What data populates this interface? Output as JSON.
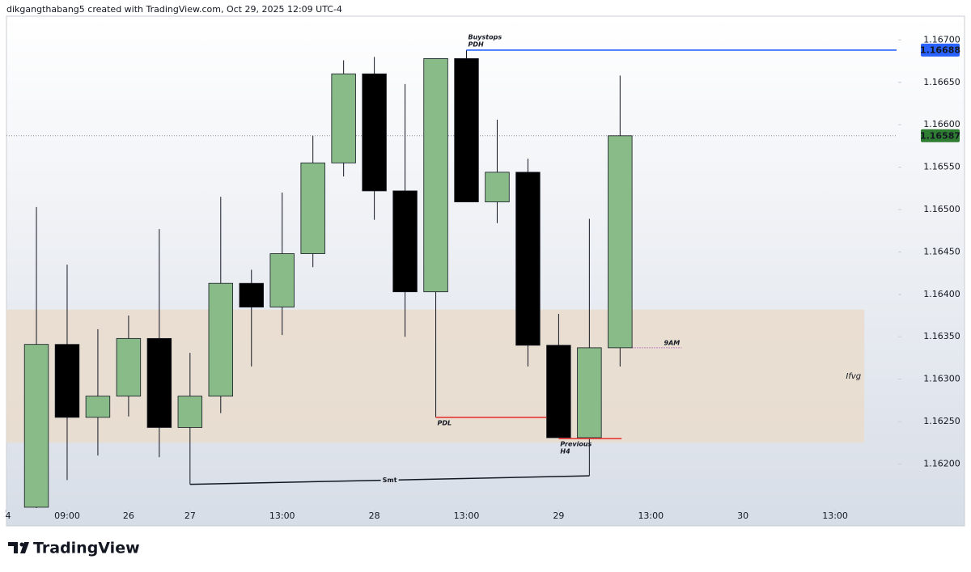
{
  "header": {
    "text": "dikgangthabang5 created with TradingView.com, Oct 29, 2025 12:09 UTC-4"
  },
  "chart_data": {
    "type": "candlestick",
    "x": [
      0,
      1,
      2,
      3,
      4,
      5,
      6,
      7,
      8,
      9,
      10,
      11,
      12,
      13,
      14,
      15,
      16,
      17,
      18,
      19
    ],
    "open": [
      1.16149,
      1.16341,
      1.16255,
      1.1628,
      1.16348,
      1.16243,
      1.1628,
      1.16413,
      1.16385,
      1.16448,
      1.16555,
      1.1666,
      1.16522,
      1.16403,
      1.16678,
      1.16509,
      1.16544,
      1.1634,
      1.16231,
      1.16337
    ],
    "high": [
      1.16503,
      1.16435,
      1.16359,
      1.16375,
      1.16477,
      1.16331,
      1.16515,
      1.16429,
      1.1652,
      1.16587,
      1.16676,
      1.1668,
      1.16648,
      1.16678,
      1.16688,
      1.16606,
      1.1656,
      1.16377,
      1.16489,
      1.16658
    ],
    "low": [
      1.16148,
      1.16181,
      1.1621,
      1.16256,
      1.16208,
      1.16176,
      1.1626,
      1.16315,
      1.16352,
      1.16432,
      1.16539,
      1.16488,
      1.1635,
      1.16255,
      1.16509,
      1.16484,
      1.16315,
      1.16231,
      1.16186,
      1.16315
    ],
    "close": [
      1.16341,
      1.16255,
      1.1628,
      1.16348,
      1.16243,
      1.1628,
      1.16413,
      1.16385,
      1.16448,
      1.16555,
      1.1666,
      1.16522,
      1.16403,
      1.16678,
      1.16509,
      1.16544,
      1.1634,
      1.16231,
      1.16337,
      1.16587
    ],
    "up_color": "#88bb88",
    "down_color": "#000000",
    "xlim": [
      -0.975,
      28.0
    ],
    "xticks": [
      {
        "value": -1,
        "label": "4"
      },
      {
        "value": 1,
        "label": "09:00"
      },
      {
        "value": 3,
        "label": "26"
      },
      {
        "value": 5,
        "label": "27"
      },
      {
        "value": 8,
        "label": "13:00"
      },
      {
        "value": 11,
        "label": "28"
      },
      {
        "value": 14,
        "label": "13:00"
      },
      {
        "value": 17,
        "label": "29"
      },
      {
        "value": 20,
        "label": "13:00"
      },
      {
        "value": 23,
        "label": "30"
      },
      {
        "value": 26,
        "label": "13:00"
      }
    ],
    "ylim": [
      1.16148,
      1.16728
    ],
    "yticks": [
      {
        "value": 1.162,
        "label": "1.16200"
      },
      {
        "value": 1.1625,
        "label": "1.16250"
      },
      {
        "value": 1.163,
        "label": "1.16300"
      },
      {
        "value": 1.1635,
        "label": "1.16350"
      },
      {
        "value": 1.164,
        "label": "1.16400"
      },
      {
        "value": 1.1645,
        "label": "1.16450"
      },
      {
        "value": 1.165,
        "label": "1.16500"
      },
      {
        "value": 1.1655,
        "label": "1.16550"
      },
      {
        "value": 1.166,
        "label": "1.16600"
      },
      {
        "value": 1.1665,
        "label": "1.16650"
      },
      {
        "value": 1.167,
        "label": "1.16700"
      }
    ],
    "price_labels": [
      {
        "value": 1.16688,
        "label": "1.16688",
        "color": "#2962ff",
        "dotted_line": false
      },
      {
        "value": 1.16587,
        "label": "1.16587",
        "color": "#2e7d32",
        "dotted_line": true
      }
    ],
    "zone": {
      "label": "Ifvg",
      "top": 1.16382,
      "bottom": 1.16225,
      "x": [
        -0.975,
        26.95
      ],
      "color": "#e9dccb"
    },
    "levels": [
      {
        "label": [
          "Buystops",
          "PDH"
        ],
        "value": 1.16688,
        "x": [
          14,
          28.0
        ],
        "color": "#2962ff",
        "dotted": false,
        "label_side": "above"
      },
      {
        "label": [
          "PDL"
        ],
        "value": 1.16255,
        "x": [
          13,
          16.6
        ],
        "color": "#e53935",
        "dotted": false,
        "label_side": "below"
      },
      {
        "label": [
          "Previous",
          "H4"
        ],
        "value": 1.1623,
        "x": [
          17,
          19.05
        ],
        "color": "#e53935",
        "dotted": false,
        "label_side": "below"
      },
      {
        "label": [
          "9AM"
        ],
        "value": 1.16337,
        "x": [
          19.4,
          21.0
        ],
        "color": "#9c27b0",
        "dotted": true,
        "label_side": "above-end"
      }
    ],
    "smt": {
      "label": "Smt",
      "x": [
        5,
        18
      ],
      "y": [
        1.16176,
        1.16186
      ]
    }
  },
  "footer": {
    "logo_text": "TradingView"
  }
}
